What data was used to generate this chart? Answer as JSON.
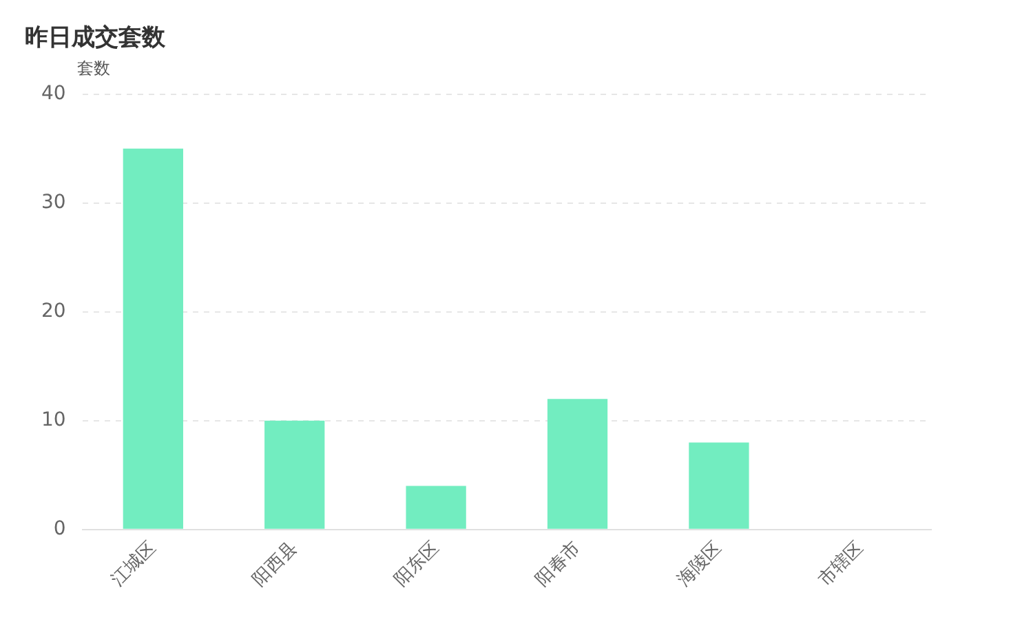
{
  "chart_data": {
    "type": "bar",
    "title": "昨日成交套数",
    "ylabel": "套数",
    "categories": [
      "江城区",
      "阳西县",
      "阳东区",
      "阳春市",
      "海陵区",
      "市辖区"
    ],
    "values": [
      35,
      10,
      4,
      12,
      8,
      0
    ],
    "color": "#72edc0",
    "ylim": [
      0,
      40
    ],
    "yticks": [
      0,
      10,
      20,
      30,
      40
    ],
    "grid": "y",
    "legend": false
  }
}
